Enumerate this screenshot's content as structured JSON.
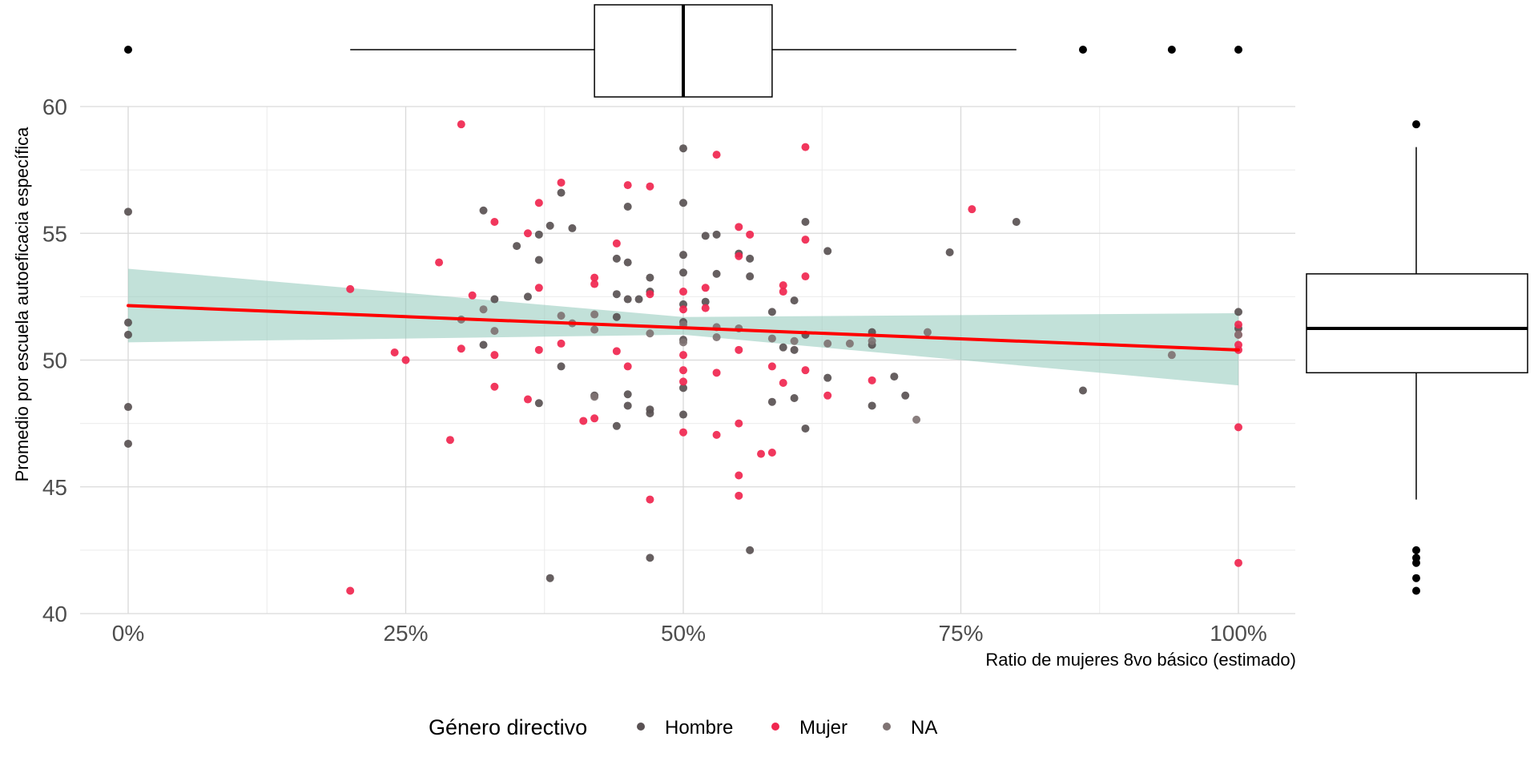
{
  "chart_data": {
    "type": "scatter",
    "xlabel": "Ratio de mujeres 8vo básico (estimado)",
    "ylabel": "Promedio por escuela autoeficacia específica",
    "xlim": [
      -0.05,
      1.05
    ],
    "ylim": [
      40,
      60
    ],
    "x_ticks": [
      0,
      0.25,
      0.5,
      0.75,
      1
    ],
    "x_tick_labels": [
      "0%",
      "25%",
      "50%",
      "75%",
      "100%"
    ],
    "y_ticks": [
      40,
      45,
      50,
      55,
      60
    ],
    "y_tick_labels": [
      "40",
      "45",
      "50",
      "55",
      "60"
    ],
    "grid": true,
    "legend": {
      "title": "Género directivo",
      "position": "bottom",
      "entries": [
        {
          "label": "Hombre",
          "color": "#595153"
        },
        {
          "label": "Mujer",
          "color": "#f0264f"
        },
        {
          "label": "NA",
          "color": "#7f7373"
        }
      ]
    },
    "series": [
      {
        "name": "Hombre",
        "color": "#595153",
        "points": [
          [
            0.0,
            55.85
          ],
          [
            0.0,
            51.48
          ],
          [
            0.0,
            51.0
          ],
          [
            0.0,
            48.15
          ],
          [
            0.0,
            46.7
          ],
          [
            0.32,
            55.9
          ],
          [
            0.32,
            50.6
          ],
          [
            0.33,
            52.4
          ],
          [
            0.35,
            54.5
          ],
          [
            0.36,
            52.5
          ],
          [
            0.37,
            54.95
          ],
          [
            0.37,
            53.95
          ],
          [
            0.37,
            48.3
          ],
          [
            0.38,
            55.3
          ],
          [
            0.38,
            41.4
          ],
          [
            0.39,
            56.6
          ],
          [
            0.39,
            49.75
          ],
          [
            0.4,
            55.2
          ],
          [
            0.42,
            48.6
          ],
          [
            0.44,
            54.0
          ],
          [
            0.44,
            52.6
          ],
          [
            0.44,
            51.7
          ],
          [
            0.44,
            47.4
          ],
          [
            0.45,
            56.05
          ],
          [
            0.45,
            53.85
          ],
          [
            0.45,
            52.4
          ],
          [
            0.45,
            48.2
          ],
          [
            0.45,
            48.65
          ],
          [
            0.46,
            52.4
          ],
          [
            0.47,
            53.25
          ],
          [
            0.47,
            52.7
          ],
          [
            0.47,
            48.05
          ],
          [
            0.47,
            47.9
          ],
          [
            0.47,
            42.2
          ],
          [
            0.5,
            58.35
          ],
          [
            0.5,
            56.2
          ],
          [
            0.5,
            54.15
          ],
          [
            0.5,
            53.45
          ],
          [
            0.5,
            52.2
          ],
          [
            0.5,
            51.5
          ],
          [
            0.5,
            50.8
          ],
          [
            0.5,
            48.9
          ],
          [
            0.5,
            47.85
          ],
          [
            0.52,
            54.9
          ],
          [
            0.52,
            52.3
          ],
          [
            0.53,
            54.95
          ],
          [
            0.53,
            53.4
          ],
          [
            0.55,
            54.2
          ],
          [
            0.56,
            54.0
          ],
          [
            0.56,
            53.3
          ],
          [
            0.56,
            42.5
          ],
          [
            0.58,
            51.9
          ],
          [
            0.58,
            48.35
          ],
          [
            0.59,
            50.5
          ],
          [
            0.6,
            52.35
          ],
          [
            0.6,
            50.4
          ],
          [
            0.6,
            48.5
          ],
          [
            0.61,
            55.45
          ],
          [
            0.61,
            51.0
          ],
          [
            0.61,
            47.3
          ],
          [
            0.63,
            54.3
          ],
          [
            0.63,
            49.3
          ],
          [
            0.67,
            51.1
          ],
          [
            0.67,
            50.6
          ],
          [
            0.67,
            48.2
          ],
          [
            0.69,
            49.35
          ],
          [
            0.7,
            48.6
          ],
          [
            0.74,
            54.25
          ],
          [
            0.8,
            55.45
          ],
          [
            0.86,
            48.8
          ],
          [
            1.0,
            51.9
          ],
          [
            1.0,
            51.25
          ]
        ]
      },
      {
        "name": "Mujer",
        "color": "#f0264f",
        "points": [
          [
            0.2,
            52.8
          ],
          [
            0.2,
            40.9
          ],
          [
            0.24,
            50.3
          ],
          [
            0.25,
            50.0
          ],
          [
            0.28,
            53.85
          ],
          [
            0.29,
            46.85
          ],
          [
            0.3,
            59.3
          ],
          [
            0.3,
            50.45
          ],
          [
            0.31,
            52.55
          ],
          [
            0.33,
            55.45
          ],
          [
            0.33,
            50.2
          ],
          [
            0.33,
            48.95
          ],
          [
            0.36,
            55.0
          ],
          [
            0.36,
            48.45
          ],
          [
            0.37,
            56.2
          ],
          [
            0.37,
            52.85
          ],
          [
            0.37,
            50.4
          ],
          [
            0.39,
            57.0
          ],
          [
            0.39,
            50.65
          ],
          [
            0.41,
            47.6
          ],
          [
            0.42,
            53.25
          ],
          [
            0.42,
            53.0
          ],
          [
            0.42,
            47.7
          ],
          [
            0.44,
            54.6
          ],
          [
            0.44,
            50.35
          ],
          [
            0.45,
            56.9
          ],
          [
            0.45,
            49.75
          ],
          [
            0.47,
            56.85
          ],
          [
            0.47,
            52.6
          ],
          [
            0.47,
            44.5
          ],
          [
            0.5,
            52.7
          ],
          [
            0.5,
            52.0
          ],
          [
            0.5,
            50.2
          ],
          [
            0.5,
            49.6
          ],
          [
            0.5,
            49.15
          ],
          [
            0.5,
            47.15
          ],
          [
            0.52,
            52.85
          ],
          [
            0.52,
            52.05
          ],
          [
            0.53,
            58.1
          ],
          [
            0.53,
            49.5
          ],
          [
            0.53,
            47.05
          ],
          [
            0.55,
            55.25
          ],
          [
            0.55,
            54.1
          ],
          [
            0.55,
            50.4
          ],
          [
            0.55,
            47.5
          ],
          [
            0.55,
            45.45
          ],
          [
            0.55,
            44.65
          ],
          [
            0.56,
            54.95
          ],
          [
            0.57,
            46.3
          ],
          [
            0.58,
            49.75
          ],
          [
            0.58,
            46.35
          ],
          [
            0.59,
            52.95
          ],
          [
            0.59,
            52.7
          ],
          [
            0.59,
            49.1
          ],
          [
            0.61,
            58.4
          ],
          [
            0.61,
            54.75
          ],
          [
            0.61,
            53.3
          ],
          [
            0.61,
            49.6
          ],
          [
            0.63,
            48.6
          ],
          [
            0.67,
            49.2
          ],
          [
            0.76,
            55.95
          ],
          [
            1.0,
            51.4
          ],
          [
            1.0,
            51.0
          ],
          [
            1.0,
            50.6
          ],
          [
            1.0,
            50.4
          ],
          [
            1.0,
            47.35
          ],
          [
            1.0,
            42.0
          ]
        ]
      },
      {
        "name": "NA",
        "color": "#7f7373",
        "points": [
          [
            0.3,
            51.6
          ],
          [
            0.32,
            52.0
          ],
          [
            0.33,
            51.15
          ],
          [
            0.39,
            51.75
          ],
          [
            0.4,
            51.45
          ],
          [
            0.42,
            51.8
          ],
          [
            0.42,
            51.2
          ],
          [
            0.42,
            48.55
          ],
          [
            0.47,
            51.05
          ],
          [
            0.5,
            51.4
          ],
          [
            0.5,
            50.7
          ],
          [
            0.53,
            51.3
          ],
          [
            0.53,
            50.9
          ],
          [
            0.55,
            51.25
          ],
          [
            0.58,
            50.85
          ],
          [
            0.6,
            50.75
          ],
          [
            0.63,
            50.65
          ],
          [
            0.65,
            50.65
          ],
          [
            0.67,
            50.75
          ],
          [
            0.71,
            47.65
          ],
          [
            0.72,
            51.1
          ],
          [
            0.94,
            50.2
          ],
          [
            1.0,
            51.0
          ]
        ]
      }
    ],
    "regression": {
      "color": "#ff0000",
      "band_color": "#8fc9ba",
      "line": [
        [
          0.0,
          52.15
        ],
        [
          1.0,
          50.4
        ]
      ],
      "band_upper": [
        [
          0.0,
          53.6
        ],
        [
          0.5,
          51.7
        ],
        [
          1.0,
          51.85
        ]
      ],
      "band_lower": [
        [
          0.0,
          50.7
        ],
        [
          0.5,
          51.0
        ],
        [
          1.0,
          49.0
        ]
      ]
    },
    "marginal_x_boxplot": {
      "q1": 0.42,
      "median": 0.5,
      "q3": 0.58,
      "whisker_low": 0.2,
      "whisker_high": 0.8,
      "outliers": [
        0.0,
        0.86,
        0.94,
        1.0
      ]
    },
    "marginal_y_boxplot": {
      "q1": 49.5,
      "median": 51.25,
      "q3": 53.4,
      "whisker_low": 44.5,
      "whisker_high": 58.4,
      "outliers": [
        59.3,
        42.5,
        42.2,
        42.0,
        41.4,
        40.9
      ]
    }
  }
}
